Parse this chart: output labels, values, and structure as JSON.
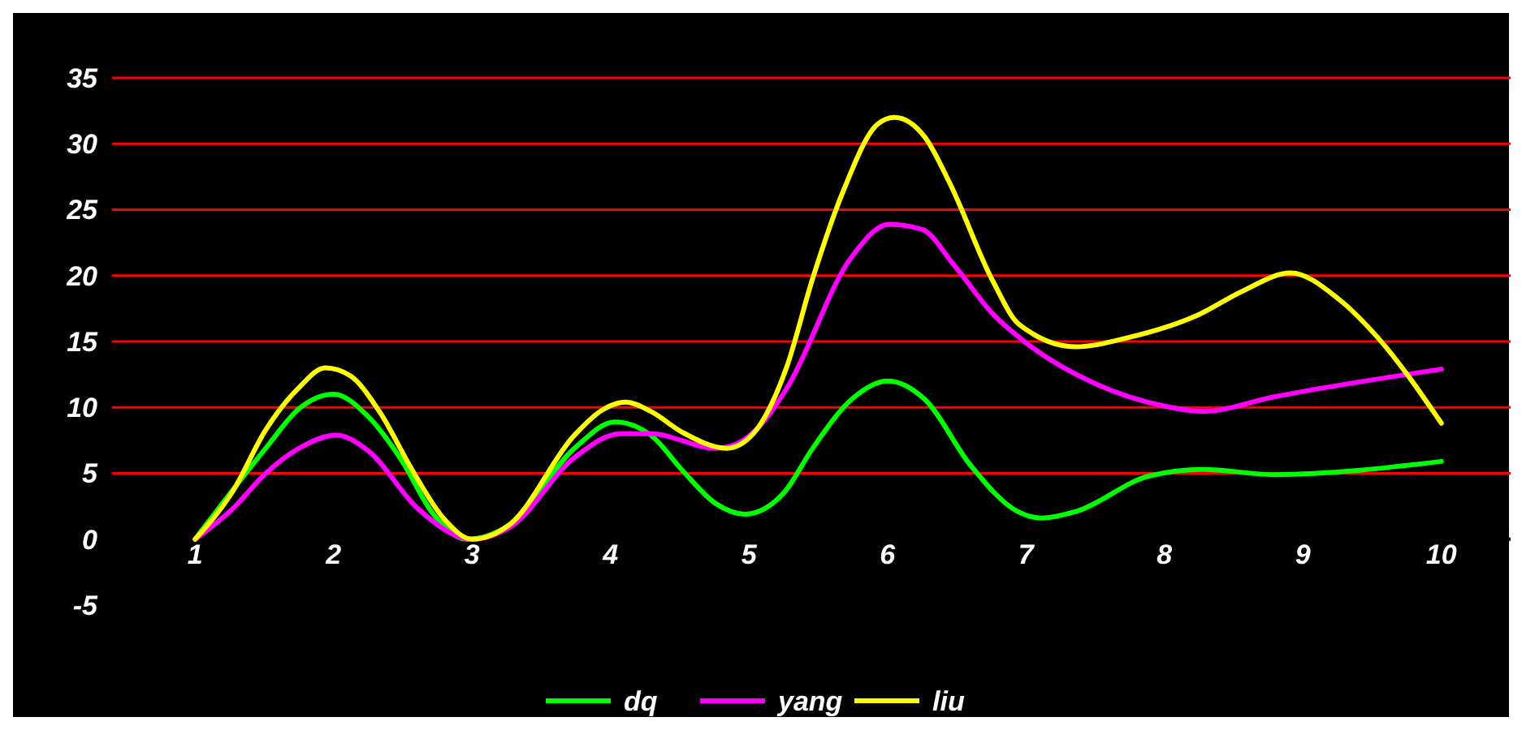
{
  "chart_data": {
    "type": "line",
    "xlim": [
      0.4,
      10.5
    ],
    "xticks": [
      1,
      2,
      3,
      4,
      5,
      6,
      7,
      8,
      9,
      10
    ],
    "ylim": [
      -5,
      35
    ],
    "yticks": [
      -5,
      0,
      5,
      10,
      15,
      20,
      25,
      30,
      35
    ],
    "grid": "y",
    "legend": "bottom",
    "marker": "none",
    "line_style": "solid",
    "series": [
      {
        "name": "dq",
        "color": "#00ff00",
        "x": [
          1,
          1.51,
          1.75,
          2,
          2.25,
          2.49,
          2.72,
          2.96,
          3.27,
          3.74,
          4.03,
          4.29,
          4.52,
          4.76,
          4.97,
          5.25,
          5.46,
          5.74,
          6,
          6.27,
          6.6,
          6.94,
          7.11,
          7.36,
          7.89,
          8.28,
          8.79,
          10
        ],
        "values": [
          0,
          6.9,
          9.9,
          11,
          9.3,
          6,
          1.9,
          0,
          1.1,
          6.9,
          8.9,
          7.9,
          5.2,
          2.7,
          1.9,
          3.5,
          6.9,
          10.6,
          12,
          10.6,
          5.6,
          2.1,
          1.6,
          2.1,
          4.8,
          5.3,
          4.9,
          5.9
        ]
      },
      {
        "name": "yang",
        "color": "#ff00ff",
        "x": [
          1,
          1.27,
          1.51,
          1.75,
          2.02,
          2.25,
          2.61,
          3,
          3.27,
          3.74,
          4.07,
          4.29,
          4.76,
          4.88,
          5.07,
          5.27,
          5.74,
          6.01,
          6.25,
          6.48,
          6.76,
          7,
          7.5,
          8,
          8.28,
          8.79,
          10
        ],
        "values": [
          0,
          2.3,
          5,
          6.9,
          7.9,
          6.7,
          2.3,
          0,
          0.9,
          6.2,
          8,
          8,
          6.9,
          7.1,
          8.5,
          11.4,
          21.4,
          23.9,
          23.5,
          20.8,
          17.1,
          14.9,
          11.8,
          10.1,
          9.7,
          10.8,
          12.9
        ]
      },
      {
        "name": "liu",
        "color": "#ffff00",
        "x": [
          1,
          1.27,
          1.51,
          1.75,
          1.94,
          2.12,
          2.33,
          2.57,
          2.8,
          3,
          3.27,
          3.74,
          3.94,
          4.11,
          4.29,
          4.52,
          4.84,
          5.03,
          5.27,
          5.46,
          5.68,
          5.93,
          6.05,
          6.27,
          6.45,
          6.76,
          6.95,
          7.36,
          7.74,
          8.24,
          8.56,
          8.91,
          9.26,
          9.54,
          10
        ],
        "values": [
          0,
          3.6,
          8.3,
          11.5,
          13,
          12.4,
          9.7,
          5.2,
          1.5,
          0,
          1.1,
          7.9,
          9.8,
          10.4,
          9.7,
          8.1,
          6.9,
          8,
          13,
          19.8,
          26.4,
          31.5,
          32,
          30.5,
          27,
          19.6,
          16.3,
          14.6,
          15.3,
          17,
          18.8,
          20.2,
          18.2,
          15.3,
          8.8
        ]
      }
    ]
  }
}
